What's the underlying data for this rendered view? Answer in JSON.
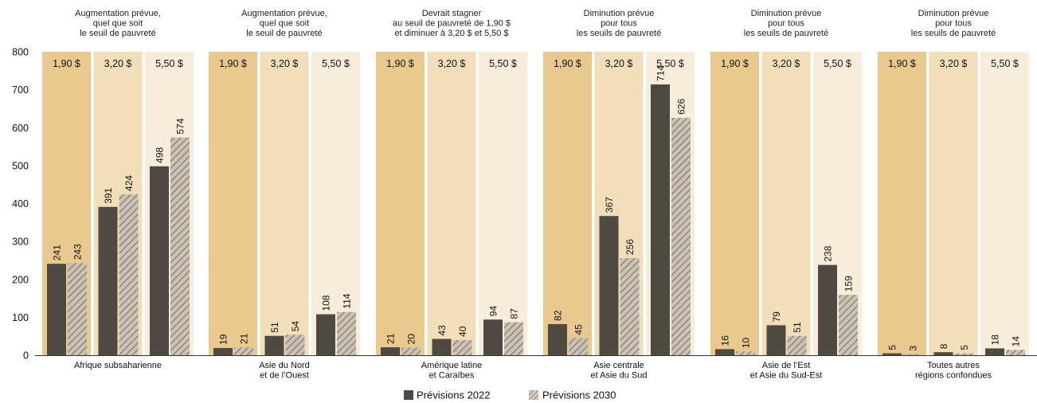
{
  "chart_data": {
    "type": "bar",
    "ylim": [
      0,
      800
    ],
    "yticks": [
      "0",
      "100",
      "200",
      "300",
      "400",
      "500",
      "600",
      "700",
      "800"
    ],
    "thresholds": [
      "1,90 $",
      "3,20 $",
      "5,50 $"
    ],
    "colors": {
      "band": [
        "#e9c98d",
        "#f2dfba",
        "#f8eddb"
      ],
      "s2022": "#4e4941",
      "s2030": "#a79e90"
    },
    "series": [
      {
        "name": "Prévisions 2022",
        "pattern": "solid"
      },
      {
        "name": "Prévisions 2030",
        "pattern": "hatched"
      }
    ],
    "groups": [
      {
        "header": [
          "Augmentation prévue,",
          "quel que soit",
          "le seuil de pauvreté"
        ],
        "label": [
          "Afrique subsaharienne"
        ],
        "s2022": [
          241,
          391,
          498
        ],
        "s2030": [
          243,
          424,
          574
        ]
      },
      {
        "header": [
          "Augmentation prévue,",
          "quel que soit",
          "le seuil de pauvreté"
        ],
        "label": [
          "Asie du Nord",
          "et de l’Ouest"
        ],
        "s2022": [
          19,
          51,
          108
        ],
        "s2030": [
          21,
          54,
          114
        ]
      },
      {
        "header": [
          "Devrait stagner",
          "au seuil de pauvreté de 1,90 $",
          "et diminuer à 3,20 $ et 5,50 $"
        ],
        "label": [
          "Amérique latine",
          "et Caraïbes"
        ],
        "s2022": [
          21,
          43,
          94
        ],
        "s2030": [
          20,
          40,
          87
        ]
      },
      {
        "header": [
          "Diminution prévue",
          "pour tous",
          "les seuils de pauvreté"
        ],
        "label": [
          "Asie centrale",
          "et Asie du Sud"
        ],
        "s2022": [
          82,
          367,
          714
        ],
        "s2030": [
          45,
          256,
          626
        ]
      },
      {
        "header": [
          "Diminution prévue",
          "pour tous",
          "les seuils de pauvreté"
        ],
        "label": [
          "Asie de l’Est",
          "et Asie du Sud-Est"
        ],
        "s2022": [
          16,
          79,
          238
        ],
        "s2030": [
          10,
          51,
          159
        ]
      },
      {
        "header": [
          "Diminution prévue",
          "pour tous",
          "les seuils de pauvreté"
        ],
        "label": [
          "Toutes autres",
          "régions confondues"
        ],
        "s2022": [
          5,
          8,
          18
        ],
        "s2030": [
          3,
          5,
          14
        ]
      }
    ]
  }
}
